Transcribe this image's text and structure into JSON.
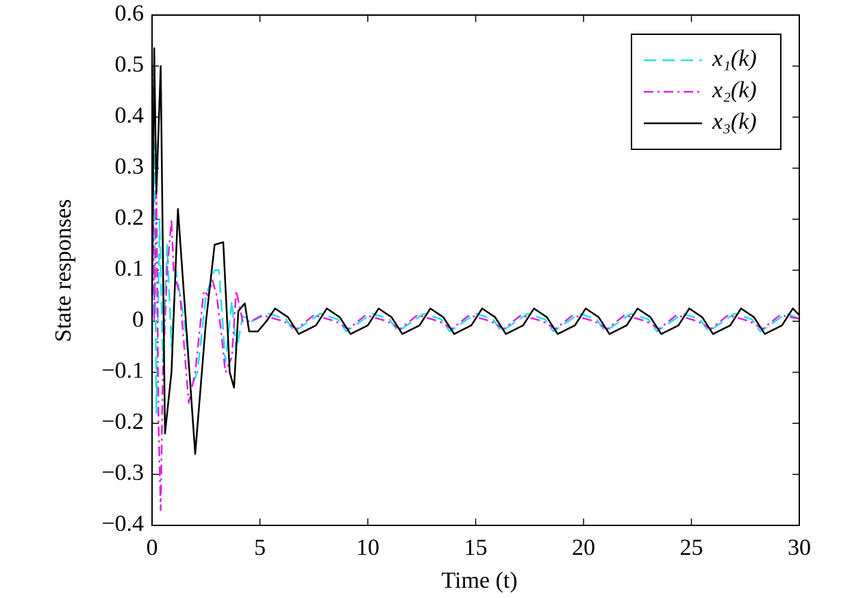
{
  "chart_data": {
    "type": "line",
    "xlabel": "Time (t)",
    "ylabel": "State responses",
    "xlim": [
      0,
      30
    ],
    "xticks": [
      0,
      5,
      10,
      15,
      20,
      25,
      30
    ],
    "ylim": [
      -0.4,
      0.6
    ],
    "yticks": [
      {
        "value": -0.4,
        "label": "−0.4"
      },
      {
        "value": -0.3,
        "label": "−0.3"
      },
      {
        "value": -0.2,
        "label": "−0.2"
      },
      {
        "value": -0.1,
        "label": "−0.1"
      },
      0,
      0.1,
      0.2,
      0.3,
      0.4,
      0.5,
      0.6
    ],
    "legend": "upper right",
    "series": [
      {
        "name": "x₁(k)",
        "color": "#22e0e8",
        "style": "dashed",
        "x": [
          0,
          0.1,
          0.2,
          0.35,
          0.5,
          0.7,
          0.9,
          1.1,
          1.5,
          1.8,
          2.1,
          2.5,
          2.9,
          3.1,
          3.4,
          3.7,
          3.9,
          4.2,
          4.6,
          5.4,
          6.2,
          6.6,
          7.8,
          8.6,
          9.0,
          10.2,
          11.0,
          11.4,
          12.6,
          13.4,
          13.8,
          15.0,
          15.8,
          16.2,
          17.4,
          18.2,
          18.6,
          19.8,
          20.6,
          21.0,
          22.2,
          23.0,
          23.4,
          24.6,
          25.4,
          25.8,
          27.0,
          27.8,
          28.2,
          29.4,
          30
        ],
        "values": [
          -0.1,
          0.35,
          -0.18,
          0.2,
          -0.08,
          0.15,
          -0.05,
          0.1,
          0.0,
          -0.13,
          -0.1,
          0.05,
          0.1,
          0.1,
          -0.08,
          0.04,
          -0.06,
          0.01,
          0.0,
          0.015,
          0.004,
          -0.02,
          0.015,
          0.004,
          -0.02,
          0.015,
          0.004,
          -0.02,
          0.015,
          0.004,
          -0.02,
          0.015,
          0.004,
          -0.02,
          0.015,
          0.004,
          -0.02,
          0.015,
          0.004,
          -0.02,
          0.015,
          0.004,
          -0.02,
          0.015,
          0.004,
          -0.02,
          0.015,
          0.004,
          -0.02,
          0.015,
          0.005
        ]
      },
      {
        "name": "x₂(k)",
        "color": "#e020e0",
        "style": "dashdot",
        "x": [
          0,
          0.1,
          0.2,
          0.3,
          0.4,
          0.5,
          0.7,
          0.9,
          1.0,
          1.3,
          1.7,
          2.0,
          2.4,
          2.6,
          2.8,
          3.0,
          3.2,
          3.4,
          3.7,
          3.9,
          4.2,
          4.6,
          5.1,
          6.1,
          6.7,
          7.5,
          8.5,
          9.1,
          9.9,
          10.9,
          11.5,
          12.3,
          13.3,
          13.9,
          14.7,
          15.7,
          16.3,
          17.1,
          18.1,
          18.7,
          19.5,
          20.5,
          21.1,
          21.9,
          22.9,
          23.5,
          24.3,
          25.3,
          25.9,
          26.7,
          27.7,
          28.3,
          29.1,
          30
        ],
        "values": [
          0.5,
          0.0,
          0.25,
          -0.2,
          -0.37,
          -0.1,
          0.1,
          0.2,
          0.1,
          0.05,
          -0.16,
          -0.1,
          0.06,
          0.05,
          0.08,
          0.05,
          -0.02,
          -0.1,
          -0.07,
          0.06,
          0.0,
          0.0,
          0.012,
          0.0,
          -0.015,
          0.012,
          0.0,
          -0.015,
          0.012,
          0.0,
          -0.015,
          0.012,
          0.0,
          -0.015,
          0.012,
          0.0,
          -0.015,
          0.012,
          0.0,
          -0.015,
          0.012,
          0.0,
          -0.015,
          0.012,
          0.0,
          -0.015,
          0.012,
          0.0,
          -0.015,
          0.012,
          0.0,
          -0.015,
          0.012,
          0.005
        ]
      },
      {
        "name": "x₃(k)",
        "color": "#000000",
        "style": "solid",
        "x": [
          0,
          0.1,
          0.2,
          0.4,
          0.6,
          0.9,
          1.2,
          2.0,
          2.5,
          2.9,
          3.3,
          3.6,
          3.8,
          4.0,
          4.3,
          4.5,
          4.9,
          5.3,
          5.7,
          6.3,
          6.8,
          7.6,
          8.1,
          8.7,
          9.2,
          10.0,
          10.5,
          11.1,
          11.6,
          12.4,
          12.9,
          13.5,
          14.0,
          14.8,
          15.3,
          15.9,
          16.4,
          17.2,
          17.7,
          18.3,
          18.8,
          19.6,
          20.1,
          20.7,
          21.2,
          22.0,
          22.5,
          23.1,
          23.6,
          24.4,
          24.9,
          25.5,
          26.0,
          26.8,
          27.3,
          27.9,
          28.4,
          29.2,
          29.7,
          30
        ],
        "values": [
          0.05,
          0.535,
          0.25,
          0.5,
          -0.22,
          -0.1,
          0.22,
          -0.26,
          0.0,
          0.15,
          0.155,
          -0.1,
          -0.13,
          0.02,
          0.035,
          -0.02,
          -0.02,
          0.0,
          0.025,
          0.008,
          -0.025,
          -0.008,
          0.025,
          0.008,
          -0.025,
          -0.008,
          0.025,
          0.008,
          -0.025,
          -0.008,
          0.025,
          0.008,
          -0.025,
          -0.008,
          0.025,
          0.008,
          -0.025,
          -0.008,
          0.025,
          0.008,
          -0.025,
          -0.008,
          0.025,
          0.008,
          -0.025,
          -0.008,
          0.025,
          0.008,
          -0.025,
          -0.008,
          0.025,
          0.008,
          -0.025,
          -0.008,
          0.025,
          0.008,
          -0.025,
          -0.008,
          0.025,
          0.012
        ]
      }
    ]
  }
}
